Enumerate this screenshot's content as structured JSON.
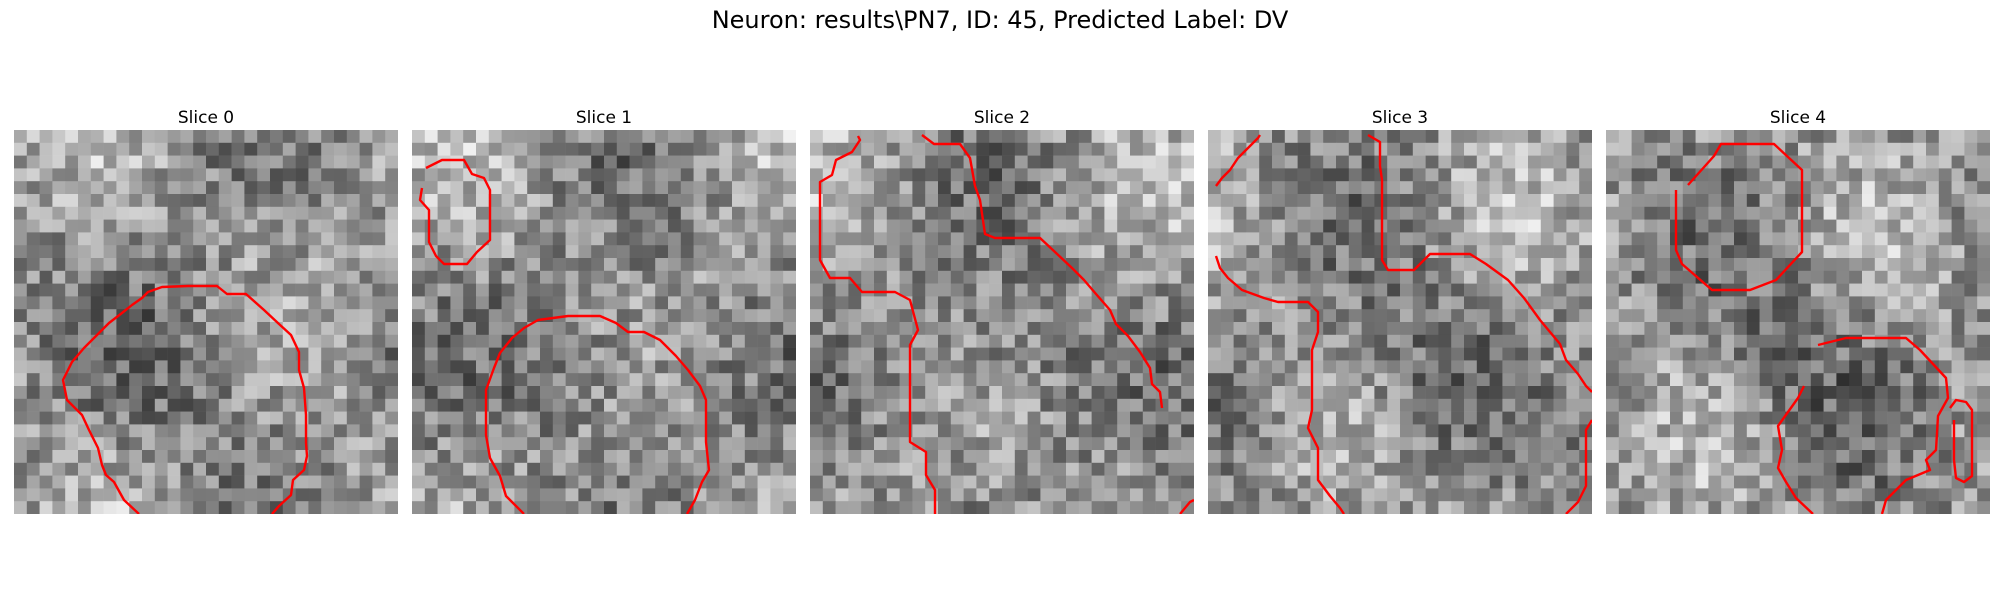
{
  "figure": {
    "title": "Neuron: results\\PN7, ID: 45, Predicted Label: DV"
  },
  "slices": [
    {
      "title": "Slice 0"
    },
    {
      "title": "Slice 1"
    },
    {
      "title": "Slice 2"
    },
    {
      "title": "Slice 3"
    },
    {
      "title": "Slice 4"
    }
  ],
  "style": {
    "contour_color": "#ff0000",
    "background": "#ffffff"
  }
}
